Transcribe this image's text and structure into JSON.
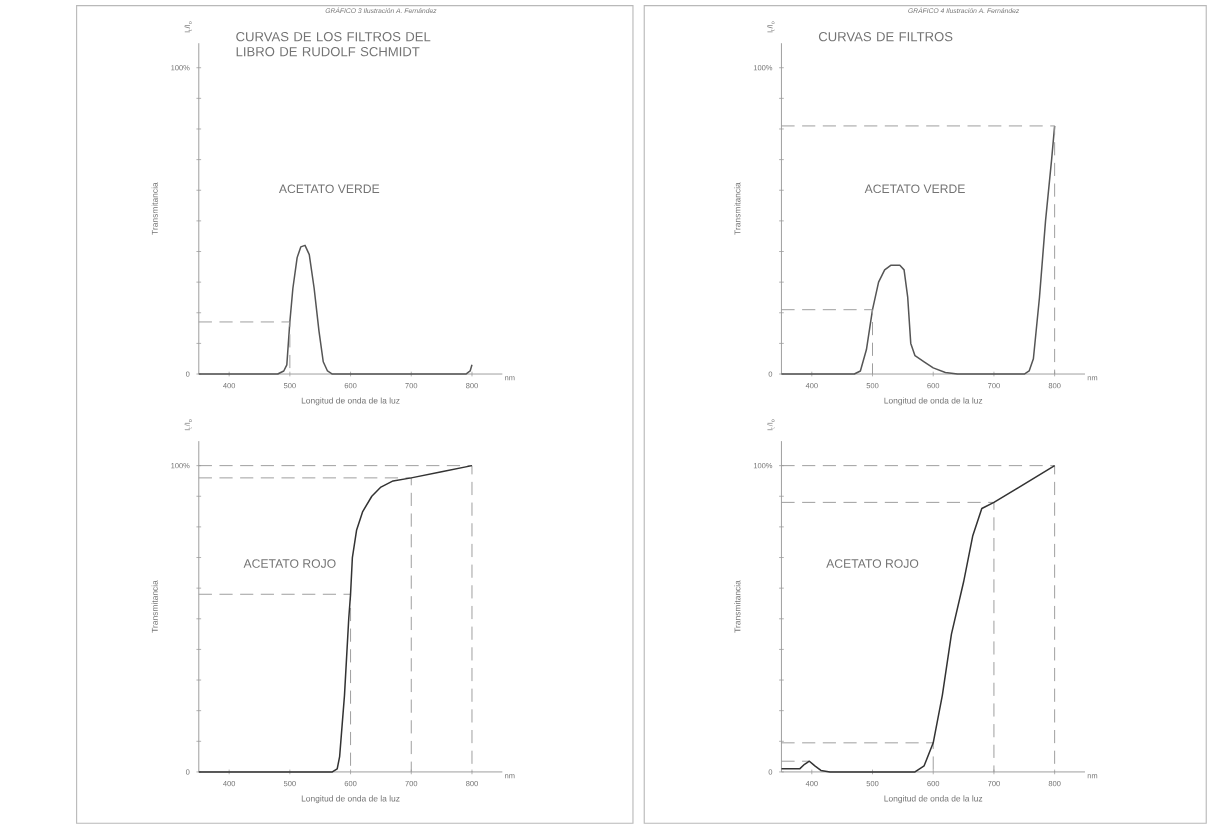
{
  "chart_data": [
    {
      "type": "line",
      "title": "CURVAS DE LOS FILTROS DEL LIBRO DE RUDOLF SCHMIDT",
      "xlabel": "Longitud de onda de la luz",
      "ylabel": "Transmitancia",
      "annotations": [
        "I$_{t}$/I$_{o}$",
        "nm",
        "GRÁFICO 3 Ilustración A. Fernández"
      ],
      "xlim": [
        350,
        850
      ],
      "xticks": [
        400,
        500,
        600,
        700,
        800
      ],
      "ylim": [
        0,
        108
      ],
      "yticks": [
        0,
        {
          "value": 10,
          "label": null
        },
        {
          "value": 20,
          "label": null
        },
        {
          "value": 30,
          "label": null
        },
        {
          "value": 40,
          "label": null
        },
        {
          "value": 50,
          "label": null
        },
        {
          "value": 60,
          "label": null
        },
        {
          "value": 70,
          "label": null
        },
        {
          "value": 80,
          "label": null
        },
        {
          "value": 90,
          "label": null
        },
        {
          "value": 100,
          "label": "100%"
        }
      ],
      "grid": false,
      "legend": false,
      "marker": "none",
      "line_style": "solid",
      "series": [
        {
          "name": "ACETATO VERDE",
          "color": "#555555",
          "x": [
            350,
            480,
            490,
            495,
            500,
            505,
            512,
            518,
            525,
            532,
            540,
            548,
            555,
            562,
            570,
            790,
            797,
            800
          ],
          "values": [
            0,
            0,
            1,
            3,
            17,
            28,
            38,
            41.5,
            42,
            39,
            28,
            14,
            4,
            1,
            0,
            0,
            1,
            3
          ]
        },
        {
          "color": "#999999",
          "line_style": "dashed",
          "x": [
            350,
            500,
            500
          ],
          "values": [
            17,
            17,
            0
          ]
        }
      ]
    },
    {
      "type": "line",
      "title": "CURVAS DE FILTROS",
      "xlabel": "Longitud de onda de la luz",
      "ylabel": "Transmitancia",
      "annotations": [
        "I$_{t}$/I$_{o}$",
        "nm",
        "GRÁFICO 4 Ilustración A. Fernández"
      ],
      "xlim": [
        350,
        850
      ],
      "xticks": [
        400,
        500,
        600,
        700,
        800
      ],
      "ylim": [
        0,
        108
      ],
      "yticks": [
        0,
        {
          "value": 10,
          "label": null
        },
        {
          "value": 20,
          "label": null
        },
        {
          "value": 30,
          "label": null
        },
        {
          "value": 40,
          "label": null
        },
        {
          "value": 50,
          "label": null
        },
        {
          "value": 60,
          "label": null
        },
        {
          "value": 70,
          "label": null
        },
        {
          "value": 80,
          "label": null
        },
        {
          "value": 90,
          "label": null
        },
        {
          "value": 100,
          "label": "100%"
        }
      ],
      "grid": false,
      "legend": false,
      "marker": "none",
      "line_style": "solid",
      "series": [
        {
          "name": "ACETATO VERDE",
          "color": "#555555",
          "x": [
            350,
            470,
            480,
            490,
            500,
            510,
            520,
            530,
            545,
            552,
            558,
            563,
            570,
            585,
            600,
            620,
            640,
            750,
            758,
            765,
            775,
            785,
            795,
            800
          ],
          "values": [
            0,
            0,
            1,
            8,
            21,
            30,
            34,
            35.5,
            35.5,
            34,
            25,
            10,
            6,
            4,
            2,
            0.5,
            0,
            0,
            1,
            5,
            25,
            50,
            70,
            81
          ]
        },
        {
          "color": "#999999",
          "line_style": "dashed",
          "x": [
            350,
            500,
            500
          ],
          "values": [
            21,
            21,
            0
          ]
        },
        {
          "color": "#999999",
          "line_style": "dashed",
          "x": [
            350,
            800,
            800
          ],
          "values": [
            81,
            81,
            0
          ]
        }
      ]
    },
    {
      "type": "line",
      "xlabel": "Longitud de onda de la luz",
      "ylabel": "Transmitancia",
      "annotations": [
        "I$_{t}$/I$_{o}$",
        "nm"
      ],
      "xlim": [
        350,
        850
      ],
      "xticks": [
        400,
        500,
        600,
        700,
        800
      ],
      "ylim": [
        0,
        108
      ],
      "yticks": [
        0,
        {
          "value": 10,
          "label": null
        },
        {
          "value": 20,
          "label": null
        },
        {
          "value": 30,
          "label": null
        },
        {
          "value": 40,
          "label": null
        },
        {
          "value": 50,
          "label": null
        },
        {
          "value": 60,
          "label": null
        },
        {
          "value": 70,
          "label": null
        },
        {
          "value": 80,
          "label": null
        },
        {
          "value": 90,
          "label": null
        },
        {
          "value": 100,
          "label": "100%"
        }
      ],
      "grid": false,
      "legend": false,
      "marker": "none",
      "line_style": "solid",
      "series": [
        {
          "color": "#999999",
          "line_style": "dashed",
          "x": [
            350,
            600,
            600
          ],
          "values": [
            58,
            58,
            0
          ]
        },
        {
          "color": "#999999",
          "line_style": "dashed",
          "x": [
            350,
            700,
            700
          ],
          "values": [
            96,
            96,
            0
          ]
        },
        {
          "color": "#999999",
          "line_style": "dashed",
          "x": [
            350,
            800,
            800
          ],
          "values": [
            100,
            100,
            0
          ]
        },
        {
          "name": "ACETATO ROJO",
          "color": "#333333",
          "x": [
            350,
            570,
            578,
            582,
            590,
            597,
            600,
            603,
            610,
            620,
            635,
            650,
            670,
            700,
            750,
            800
          ],
          "values": [
            0,
            0,
            1,
            5,
            25,
            50,
            58,
            70,
            79,
            85,
            90,
            93,
            95,
            96,
            98,
            100
          ]
        }
      ]
    },
    {
      "type": "line",
      "xlabel": "Longitud de onda de la luz",
      "ylabel": "Transmitancia",
      "annotations": [
        "I$_{t}$/I$_{o}$",
        "nm"
      ],
      "xlim": [
        350,
        850
      ],
      "xticks": [
        400,
        500,
        600,
        700,
        800
      ],
      "ylim": [
        0,
        108
      ],
      "yticks": [
        0,
        {
          "value": 10,
          "label": null
        },
        {
          "value": 20,
          "label": null
        },
        {
          "value": 30,
          "label": null
        },
        {
          "value": 40,
          "label": null
        },
        {
          "value": 50,
          "label": null
        },
        {
          "value": 60,
          "label": null
        },
        {
          "value": 70,
          "label": null
        },
        {
          "value": 80,
          "label": null
        },
        {
          "value": 90,
          "label": null
        },
        {
          "value": 100,
          "label": "100%"
        }
      ],
      "grid": false,
      "legend": false,
      "marker": "none",
      "line_style": "solid",
      "series": [
        {
          "color": "#999999",
          "line_style": "dashed",
          "x": [
            350,
            396
          ],
          "values": [
            3.5,
            3.5
          ]
        },
        {
          "color": "#999999",
          "line_style": "dashed",
          "x": [
            350,
            600,
            600
          ],
          "values": [
            9.5,
            9.5,
            0
          ]
        },
        {
          "color": "#999999",
          "line_style": "dashed",
          "x": [
            350,
            700,
            700
          ],
          "values": [
            88,
            88,
            0
          ]
        },
        {
          "color": "#999999",
          "line_style": "dashed",
          "x": [
            350,
            800,
            800
          ],
          "values": [
            100,
            100,
            0
          ]
        },
        {
          "name": "ACETATO ROJO",
          "color": "#333333",
          "x": [
            350,
            380,
            388,
            396,
            405,
            415,
            430,
            570,
            585,
            600,
            615,
            630,
            650,
            665,
            680,
            690,
            700,
            800
          ],
          "values": [
            1,
            1,
            2.5,
            3.5,
            2,
            0.5,
            0,
            0,
            2,
            9.5,
            25,
            45,
            62,
            77,
            86,
            87,
            88,
            100
          ]
        }
      ]
    }
  ]
}
